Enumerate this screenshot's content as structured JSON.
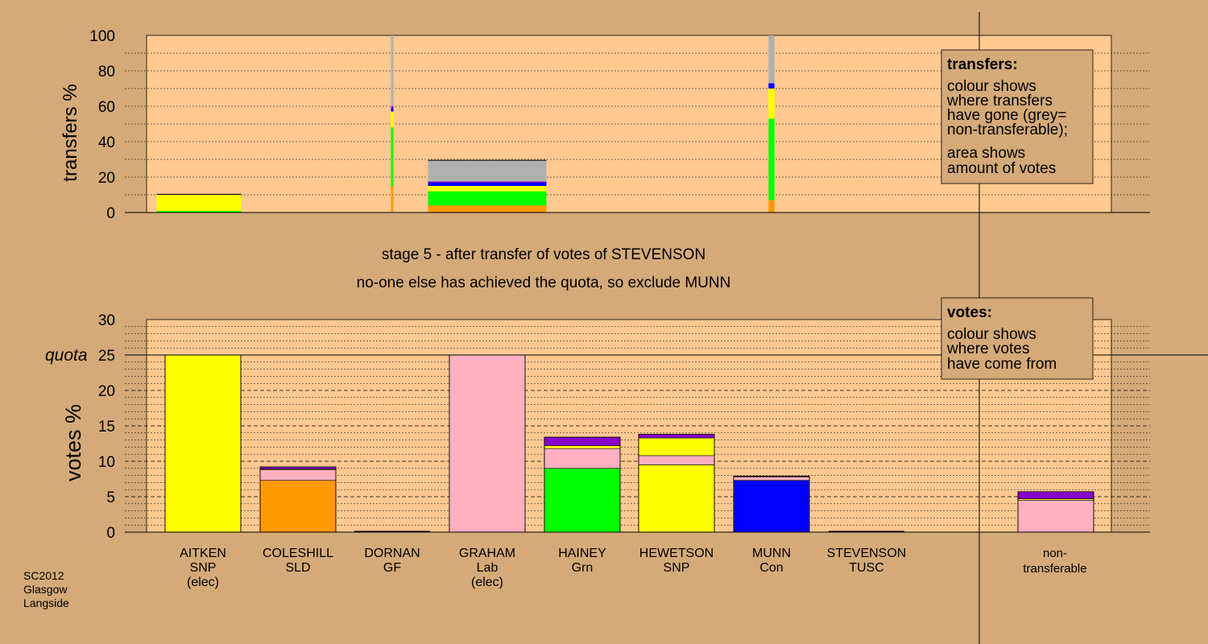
{
  "footer": {
    "election": "SC2012",
    "city": "Glasgow",
    "ward": "Langside"
  },
  "header": {
    "stage_line": "stage 5 - after transfer of votes of STEVENSON",
    "action_line": "no-one else has achieved the quota, so exclude MUNN"
  },
  "colors": {
    "page_bg": "#d4aa78",
    "plot_bg": "#ffc990",
    "SNP": "#ffff00",
    "SLD": "#ff9900",
    "Lab": "#ffb0c0",
    "Grn": "#00ff00",
    "Con": "#0000ff",
    "TUSC": "#8800cc",
    "GF": "#000000",
    "nontransferable": "#b0b0b0"
  },
  "legend_transfers": {
    "title": "transfers:",
    "lines": [
      "colour shows",
      "where transfers",
      "have gone (grey=",
      "non-transferable);",
      "area shows",
      "amount of votes"
    ]
  },
  "legend_votes": {
    "title": "votes:",
    "lines": [
      "colour shows",
      "where votes",
      "have come from"
    ]
  },
  "candidates": [
    {
      "name": "AITKEN",
      "party": "SNP",
      "note": "(elec)"
    },
    {
      "name": "COLESHILL",
      "party": "SLD",
      "note": ""
    },
    {
      "name": "DORNAN",
      "party": "GF",
      "note": ""
    },
    {
      "name": "GRAHAM",
      "party": "Lab",
      "note": "(elec)"
    },
    {
      "name": "HAINEY",
      "party": "Grn",
      "note": ""
    },
    {
      "name": "HEWETSON",
      "party": "SNP",
      "note": ""
    },
    {
      "name": "MUNN",
      "party": "Con",
      "note": ""
    },
    {
      "name": "STEVENSON",
      "party": "TUSC",
      "note": ""
    }
  ],
  "nontransferable_label": [
    "non-",
    "transferable"
  ],
  "chart_data": [
    {
      "type": "bar",
      "stacked": true,
      "ylabel": "transfers %",
      "ylim": [
        0,
        100
      ],
      "yticks": [
        0,
        20,
        40,
        60,
        80,
        100
      ],
      "grid": true,
      "categories": [
        "AITKEN",
        "COLESHILL",
        "DORNAN",
        "GRAHAM",
        "HAINEY",
        "HEWETSON",
        "MUNN",
        "STEVENSON"
      ],
      "segment_colors": [
        "#ff9900",
        "#00ff00",
        "#ffff00",
        "#0000ff",
        "#8800cc",
        "#b0b0b0"
      ],
      "segments": [
        [
          0,
          1,
          9,
          0,
          0.3,
          0
        ],
        [],
        [
          15,
          33,
          9,
          2,
          1,
          40
        ],
        [
          4,
          8,
          3,
          2,
          0.5,
          12
        ],
        [],
        [],
        [
          7,
          46,
          17,
          3,
          0,
          27
        ],
        []
      ],
      "relative_width": [
        1,
        0,
        0.01,
        1.4,
        0,
        0,
        0.07,
        0
      ]
    },
    {
      "type": "bar",
      "stacked": true,
      "ylabel": "votes %",
      "ylim": [
        0,
        30
      ],
      "yticks": [
        0,
        5,
        10,
        15,
        20,
        25,
        30
      ],
      "quota": 25,
      "quota_label": "quota",
      "grid": true,
      "categories": [
        "AITKEN",
        "COLESHILL",
        "DORNAN",
        "GRAHAM",
        "HAINEY",
        "HEWETSON",
        "MUNN",
        "STEVENSON",
        "non-transferable"
      ],
      "segments": [
        [
          {
            "color": "#ffff00",
            "value": 25
          }
        ],
        [
          {
            "color": "#ff9900",
            "value": 7.3
          },
          {
            "color": "#ffb0c0",
            "value": 1.5
          },
          {
            "color": "#ffff00",
            "value": 0.1
          },
          {
            "color": "#8800cc",
            "value": 0.3
          }
        ],
        [
          {
            "color": "#000000",
            "value": 0
          }
        ],
        [
          {
            "color": "#ffb0c0",
            "value": 25
          }
        ],
        [
          {
            "color": "#00ff00",
            "value": 9
          },
          {
            "color": "#ffb0c0",
            "value": 2.8
          },
          {
            "color": "#ffff00",
            "value": 0.4
          },
          {
            "color": "#8800cc",
            "value": 1.2
          }
        ],
        [
          {
            "color": "#ffff00",
            "value": 9.5
          },
          {
            "color": "#ffb0c0",
            "value": 1.3
          },
          {
            "color": "#ffff00",
            "value": 2.5
          },
          {
            "color": "#8800cc",
            "value": 0.5
          }
        ],
        [
          {
            "color": "#0000ff",
            "value": 7.3
          },
          {
            "color": "#ffb0c0",
            "value": 0.5
          },
          {
            "color": "#8800cc",
            "value": 0.1
          }
        ],
        [
          {
            "color": "#8800cc",
            "value": 0
          }
        ],
        [
          {
            "color": "#ffb0c0",
            "value": 4.5
          },
          {
            "color": "#ffff00",
            "value": 0.2
          },
          {
            "color": "#8800cc",
            "value": 1
          }
        ]
      ]
    }
  ]
}
